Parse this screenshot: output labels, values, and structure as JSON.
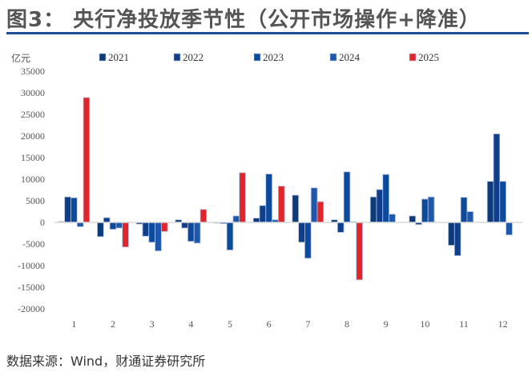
{
  "title": "图3： 央行净投放季节性（公开市场操作+降准）",
  "source": "数据来源：Wind，财通证券研究所",
  "chart_data": {
    "type": "bar",
    "ylabel": "亿元",
    "ylim": [
      -20000,
      35000
    ],
    "yticks": [
      -20000,
      -15000,
      -10000,
      -5000,
      0,
      5000,
      10000,
      15000,
      20000,
      25000,
      30000,
      35000
    ],
    "categories": [
      "1",
      "2",
      "3",
      "4",
      "5",
      "6",
      "7",
      "8",
      "9",
      "10",
      "11",
      "12"
    ],
    "legend_position": "top",
    "grid": false,
    "series": [
      {
        "name": "2021",
        "color": "#0d3a78",
        "values": [
          200,
          -3300,
          -400,
          600,
          -100,
          1000,
          6300,
          600,
          5900,
          1500,
          -5300,
          9500
        ]
      },
      {
        "name": "2022",
        "color": "#0f3f8a",
        "values": [
          5900,
          1100,
          -3200,
          -1300,
          -300,
          3900,
          -4600,
          -2300,
          7600,
          -500,
          -7700,
          20500
        ]
      },
      {
        "name": "2023",
        "color": "#0b4a9c",
        "values": [
          5700,
          -1600,
          -4600,
          -4400,
          -6400,
          11200,
          -8300,
          11700,
          11100,
          5400,
          5800,
          9500
        ]
      },
      {
        "name": "2024",
        "color": "#1d58ad",
        "values": [
          -1000,
          -1300,
          -6600,
          -4800,
          1500,
          600,
          8000,
          200,
          1900,
          5900,
          2500,
          -2900
        ]
      },
      {
        "name": "2025",
        "color": "#e0262b",
        "values": [
          28900,
          -5700,
          -2100,
          3000,
          11500,
          8400,
          4800,
          -13300,
          null,
          null,
          null,
          null
        ]
      }
    ]
  }
}
